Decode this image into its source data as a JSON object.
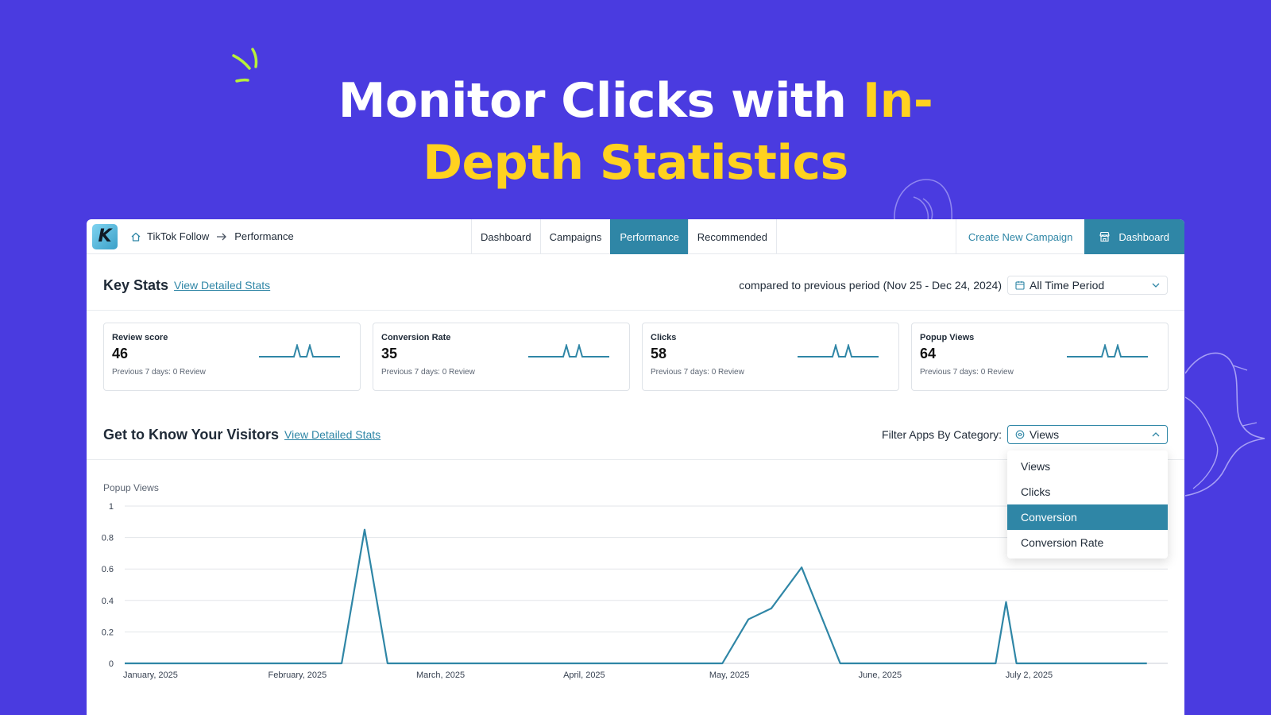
{
  "headline": {
    "line1_white": "Monitor Clicks with ",
    "line1_yellow": "In-",
    "line2_yellow": "Depth Statistics"
  },
  "colors": {
    "background": "#4A3BE0",
    "accent": "#2F86A6",
    "highlight": "#FFD21F"
  },
  "topbar": {
    "logo_letter": "K",
    "breadcrumb": {
      "home_icon": "home-icon",
      "root": "TikTok Follow",
      "separator_icon": "arrow-right-icon",
      "current": "Performance"
    },
    "tabs": [
      {
        "label": "Dashboard",
        "active": false
      },
      {
        "label": "Campaigns",
        "active": false
      },
      {
        "label": "Performance",
        "active": true
      },
      {
        "label": "Recommended",
        "active": false
      }
    ],
    "create_campaign": "Create New Campaign",
    "dashboard_button": "Dashboard",
    "dashboard_icon": "store-icon"
  },
  "key_stats": {
    "title": "Key Stats",
    "link": "View Detailed Stats",
    "comparison": "compared to previous period (Nov 25 - Dec 24, 2024)",
    "period_select": {
      "value": "All Time Period",
      "icon": "calendar-icon"
    },
    "cards": [
      {
        "label": "Review score",
        "value": "46",
        "prev": "Previous 7 days: 0 Review"
      },
      {
        "label": "Conversion Rate",
        "value": "35",
        "prev": "Previous 7 days: 0 Review"
      },
      {
        "label": "Clicks",
        "value": "58",
        "prev": "Previous 7 days: 0 Review"
      },
      {
        "label": "Popup Views",
        "value": "64",
        "prev": "Previous 7 days: 0 Review"
      }
    ]
  },
  "visitors": {
    "title": "Get to Know Your Visitors",
    "link": "View Detailed Stats",
    "filter_label": "Filter Apps By Category:",
    "filter_select": {
      "value": "Views",
      "icon": "views-icon"
    },
    "dropdown_options": [
      {
        "label": "Views",
        "selected": false
      },
      {
        "label": "Clicks",
        "selected": false
      },
      {
        "label": "Conversion",
        "selected": true
      },
      {
        "label": "Conversion Rate",
        "selected": false
      }
    ],
    "chart_title": "Popup Views"
  },
  "chart_data": {
    "type": "line",
    "ylim": [
      0,
      1
    ],
    "yticks": [
      "0",
      "0.2",
      "0.4",
      "0.6",
      "0.8",
      "1"
    ],
    "xtick_labels": [
      "January, 2025",
      "February, 2025",
      "March, 2025",
      "April, 2025",
      "May, 2025",
      "June, 2025",
      "July 2, 2025"
    ],
    "grid": true,
    "series": [
      {
        "color": "#2F86A6",
        "points": [
          {
            "x": 0,
            "y": 0
          },
          {
            "x": 0.208,
            "y": 0
          },
          {
            "x": 0.23,
            "y": 0.85
          },
          {
            "x": 0.252,
            "y": 0
          },
          {
            "x": 0.573,
            "y": 0
          },
          {
            "x": 0.598,
            "y": 0.28
          },
          {
            "x": 0.62,
            "y": 0.35
          },
          {
            "x": 0.649,
            "y": 0.61
          },
          {
            "x": 0.686,
            "y": 0
          },
          {
            "x": 0.835,
            "y": 0
          },
          {
            "x": 0.845,
            "y": 0.39
          },
          {
            "x": 0.855,
            "y": 0
          },
          {
            "x": 0.98,
            "y": 0
          }
        ]
      }
    ]
  }
}
